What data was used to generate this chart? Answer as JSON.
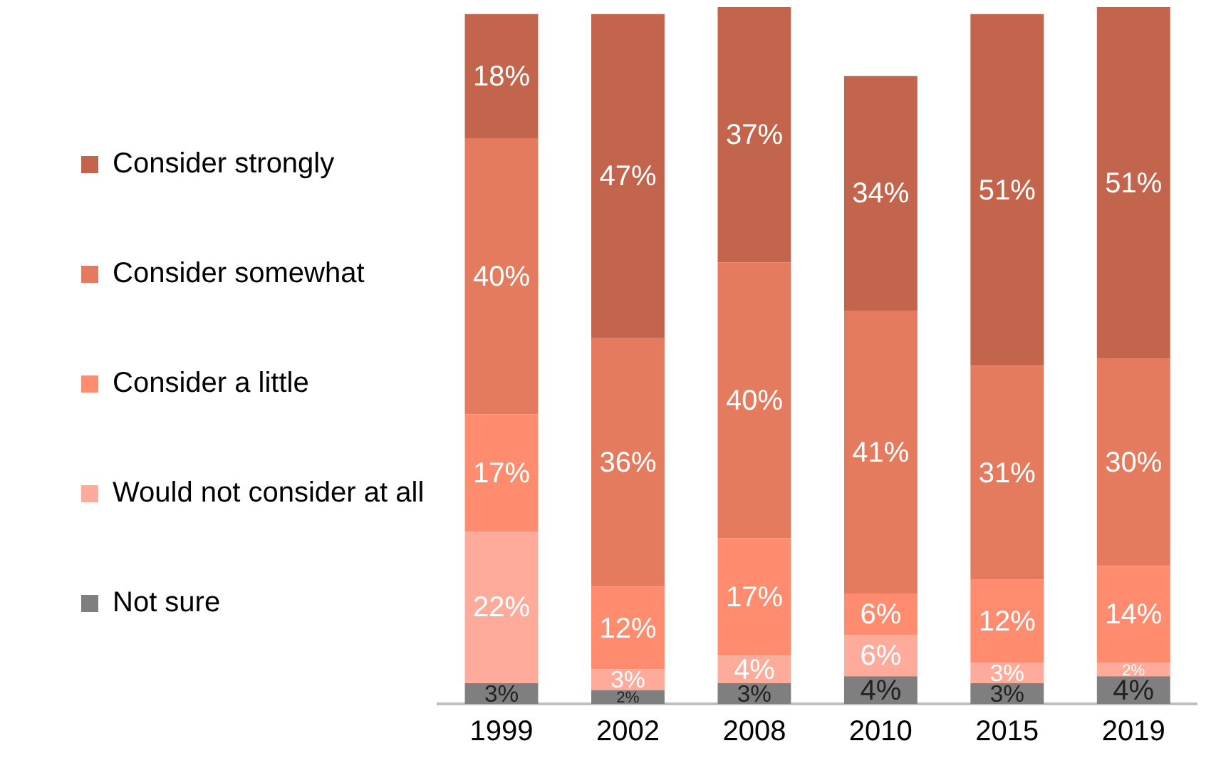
{
  "chart_data": {
    "type": "bar",
    "stacked": true,
    "categories": [
      "1999",
      "2002",
      "2008",
      "2010",
      "2015",
      "2019"
    ],
    "series": [
      {
        "name": "Not sure",
        "color": "#7f7f7f",
        "values": [
          3,
          2,
          3,
          4,
          3,
          4
        ],
        "value_labels": [
          "3%",
          "2%",
          "3%",
          "4%",
          "3%",
          "4%"
        ]
      },
      {
        "name": "Would not consider at all",
        "color": "#ffab9b",
        "values": [
          22,
          3,
          4,
          6,
          3,
          2
        ],
        "value_labels": [
          "22%",
          "3%",
          "4%",
          "6%",
          "3%",
          "2%"
        ]
      },
      {
        "name": "Consider a little",
        "color": "#ff8c6e",
        "values": [
          17,
          12,
          17,
          6,
          12,
          14
        ],
        "value_labels": [
          "17%",
          "12%",
          "17%",
          "6%",
          "12%",
          "14%"
        ]
      },
      {
        "name": "Consider somewhat",
        "color": "#e47a5e",
        "values": [
          40,
          36,
          40,
          41,
          31,
          30
        ],
        "value_labels": [
          "40%",
          "36%",
          "40%",
          "41%",
          "31%",
          "30%"
        ]
      },
      {
        "name": "Consider strongly",
        "color": "#c3654d",
        "values": [
          18,
          47,
          37,
          34,
          51,
          51
        ],
        "value_labels": [
          "18%",
          "47%",
          "37%",
          "34%",
          "51%",
          "51%"
        ]
      }
    ],
    "legend": "left",
    "grid": false
  }
}
